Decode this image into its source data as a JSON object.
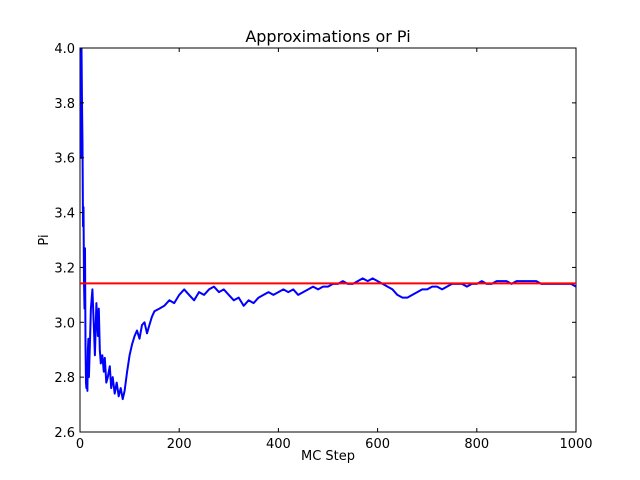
{
  "chart_data": {
    "type": "line",
    "title": "Approximations or Pi",
    "xlabel": "MC Step",
    "ylabel": "Pi",
    "xlim": [
      0,
      1000
    ],
    "ylim": [
      2.6,
      4.0
    ],
    "xticks": [
      0,
      200,
      400,
      600,
      800,
      1000
    ],
    "yticks": [
      2.6,
      2.8,
      3.0,
      3.2,
      3.4,
      3.6,
      3.8,
      4.0
    ],
    "xtick_labels": [
      "0",
      "200",
      "400",
      "600",
      "800",
      "1000"
    ],
    "ytick_labels": [
      "2.6",
      "2.8",
      "3.0",
      "3.2",
      "3.4",
      "3.6",
      "3.8",
      "4.0"
    ],
    "grid": false,
    "series": [
      {
        "color": "#0000ff",
        "x": [
          1,
          2,
          3,
          4,
          5,
          6,
          7,
          8,
          9,
          10,
          11,
          12,
          13,
          14,
          15,
          16,
          17,
          18,
          20,
          22,
          25,
          28,
          30,
          33,
          36,
          38,
          40,
          42,
          45,
          48,
          50,
          53,
          56,
          60,
          63,
          66,
          70,
          74,
          78,
          82,
          86,
          90,
          95,
          100,
          105,
          110,
          115,
          120,
          125,
          130,
          135,
          140,
          145,
          150,
          160,
          170,
          180,
          190,
          200,
          210,
          220,
          230,
          240,
          250,
          260,
          270,
          280,
          290,
          300,
          310,
          320,
          330,
          340,
          350,
          360,
          370,
          380,
          390,
          400,
          410,
          420,
          430,
          440,
          450,
          460,
          470,
          480,
          490,
          500,
          510,
          520,
          530,
          540,
          550,
          560,
          570,
          580,
          590,
          600,
          610,
          620,
          630,
          640,
          650,
          660,
          670,
          680,
          690,
          700,
          710,
          720,
          730,
          740,
          750,
          760,
          770,
          780,
          790,
          800,
          810,
          820,
          830,
          840,
          850,
          860,
          870,
          880,
          890,
          900,
          910,
          920,
          930,
          940,
          950,
          960,
          970,
          980,
          990,
          1000
        ],
        "y": [
          4.0,
          3.6,
          4.0,
          3.8,
          3.65,
          3.35,
          3.42,
          3.15,
          3.05,
          3.27,
          2.92,
          2.78,
          2.76,
          2.85,
          2.75,
          2.9,
          2.94,
          2.8,
          2.92,
          3.05,
          3.12,
          2.98,
          2.88,
          3.07,
          2.95,
          3.05,
          2.9,
          2.85,
          2.88,
          2.82,
          2.87,
          2.78,
          2.8,
          2.84,
          2.76,
          2.8,
          2.74,
          2.78,
          2.73,
          2.76,
          2.72,
          2.75,
          2.82,
          2.88,
          2.92,
          2.95,
          2.97,
          2.94,
          2.99,
          3.0,
          2.96,
          2.99,
          3.02,
          3.04,
          3.05,
          3.06,
          3.08,
          3.07,
          3.1,
          3.12,
          3.1,
          3.08,
          3.11,
          3.1,
          3.12,
          3.13,
          3.11,
          3.12,
          3.1,
          3.08,
          3.09,
          3.06,
          3.08,
          3.07,
          3.09,
          3.1,
          3.11,
          3.1,
          3.11,
          3.12,
          3.11,
          3.12,
          3.1,
          3.11,
          3.12,
          3.13,
          3.12,
          3.13,
          3.13,
          3.14,
          3.14,
          3.15,
          3.14,
          3.14,
          3.15,
          3.16,
          3.15,
          3.16,
          3.15,
          3.14,
          3.13,
          3.12,
          3.1,
          3.09,
          3.09,
          3.1,
          3.11,
          3.12,
          3.12,
          3.13,
          3.13,
          3.12,
          3.13,
          3.14,
          3.14,
          3.14,
          3.13,
          3.14,
          3.14,
          3.15,
          3.14,
          3.14,
          3.15,
          3.15,
          3.15,
          3.14,
          3.15,
          3.15,
          3.15,
          3.15,
          3.15,
          3.14,
          3.14,
          3.14,
          3.14,
          3.14,
          3.14,
          3.14,
          3.13
        ]
      },
      {
        "color": "#ff0000",
        "x": [
          0,
          1000
        ],
        "y": [
          3.14159,
          3.14159
        ]
      }
    ]
  }
}
